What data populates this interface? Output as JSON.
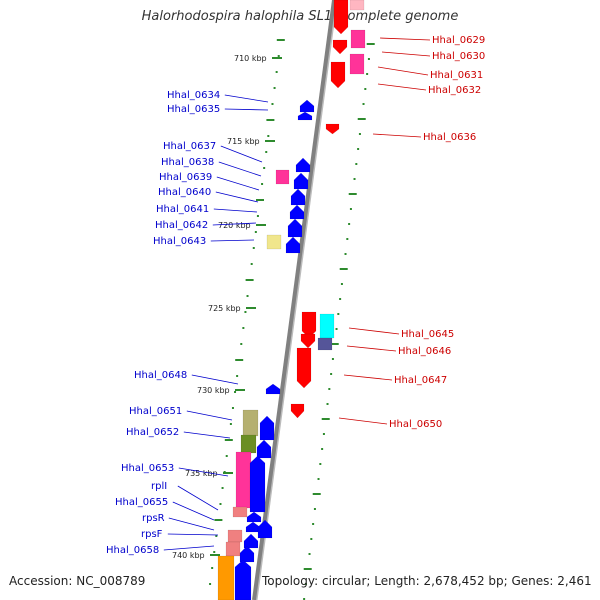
{
  "title": "Halorhodospira halophila SL1, complete genome",
  "accession": "Accession: NC_008789",
  "topology": "Topology: circular; Length: 2,678,452 bp; Genes: 2,461",
  "colors": {
    "backbone": "#808080",
    "tick": "#2e8b2e",
    "left_label": "#0000cc",
    "right_label": "#cc0000",
    "pink": "#ff3399",
    "red": "#ff0000",
    "blue": "#0000ff",
    "yellow": "#f0e68c",
    "olive": "#b5b070",
    "green": "#6b8e23",
    "salmon": "#f08080",
    "cyan": "#00ffff",
    "slate": "#555599",
    "orange": "#ff9900"
  },
  "kbp_labels": [
    "710 kbp",
    "715 kbp",
    "720 kbp",
    "725 kbp",
    "730 kbp",
    "735 kbp",
    "740 kbp"
  ],
  "left_genes": [
    "Hhal_0634",
    "Hhal_0635",
    "Hhal_0637",
    "Hhal_0638",
    "Hhal_0639",
    "Hhal_0640",
    "Hhal_0641",
    "Hhal_0642",
    "Hhal_0643",
    "Hhal_0648",
    "Hhal_0651",
    "Hhal_0652",
    "Hhal_0653",
    "rplI",
    "Hhal_0655",
    "rpsR",
    "rpsF",
    "Hhal_0658"
  ],
  "right_genes": [
    "Hhal_0629",
    "Hhal_0630",
    "Hhal_0631",
    "Hhal_0632",
    "Hhal_0636",
    "Hhal_0645",
    "Hhal_0646",
    "Hhal_0647",
    "Hhal_0650"
  ]
}
